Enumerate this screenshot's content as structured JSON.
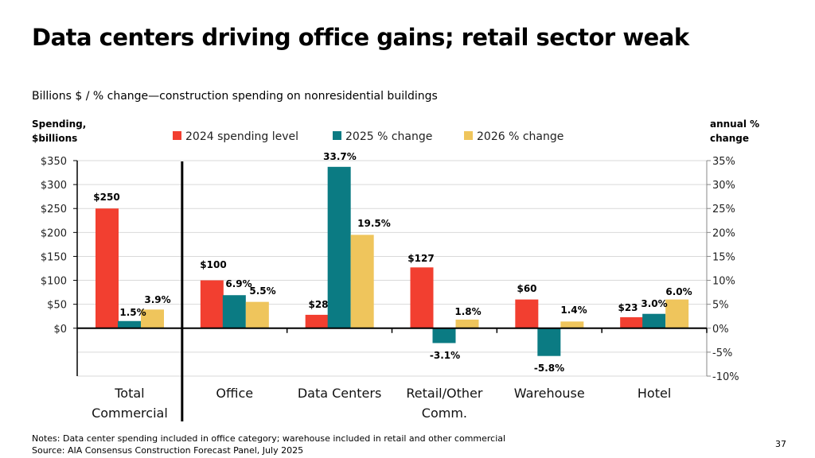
{
  "title": "Data centers driving office gains; retail sector weak",
  "subtitle": "Billions $ / % change—construction spending on nonresidential buildings",
  "notes": [
    "Notes: Data center spending included in office category; warehouse included in retail and other commercial",
    "Source:  AIA Consensus Construction Forecast Panel, July 2025"
  ],
  "page_number": "37",
  "chart_data": {
    "type": "bar",
    "categories": [
      [
        "Total",
        "Commercial"
      ],
      [
        "Office"
      ],
      [
        "Data Centers"
      ],
      [
        "Retail/Other",
        "Comm."
      ],
      [
        "Warehouse"
      ],
      [
        "Hotel"
      ]
    ],
    "ylabel_left": [
      "Spending,",
      "$billions"
    ],
    "ylabel_right": [
      "annual %",
      "change"
    ],
    "ylim_left": [
      -100,
      350
    ],
    "ylim_right": [
      -10,
      35
    ],
    "left_ticks": [
      "$0",
      "$50",
      "$100",
      "$150",
      "$200",
      "$250",
      "$300",
      "$350"
    ],
    "right_ticks": [
      "-10%",
      "-5%",
      "0%",
      "5%",
      "10%",
      "15%",
      "20%",
      "25%",
      "30%",
      "35%"
    ],
    "grid": true,
    "legend_position": "top",
    "series": [
      {
        "name": "2024 spending level",
        "axis": "left",
        "color": "#f23f30",
        "values": [
          250,
          100,
          28,
          127,
          60,
          23
        ],
        "labels": [
          "$250",
          "$100",
          "$28",
          "$127",
          "$60",
          "$23"
        ]
      },
      {
        "name": "2025 % change",
        "axis": "right",
        "color": "#0b7b83",
        "values": [
          1.5,
          6.9,
          33.7,
          -3.1,
          -5.8,
          3.0
        ],
        "labels": [
          "1.5%",
          "6.9%",
          "33.7%",
          "-3.1%",
          "-5.8%",
          "3.0%"
        ]
      },
      {
        "name": "2026 % change",
        "axis": "right",
        "color": "#efc55c",
        "values": [
          3.9,
          5.5,
          19.5,
          1.8,
          1.4,
          6.0
        ],
        "labels": [
          "3.9%",
          "5.5%",
          "19.5%",
          "1.8%",
          "1.4%",
          "6.0%"
        ]
      }
    ]
  }
}
